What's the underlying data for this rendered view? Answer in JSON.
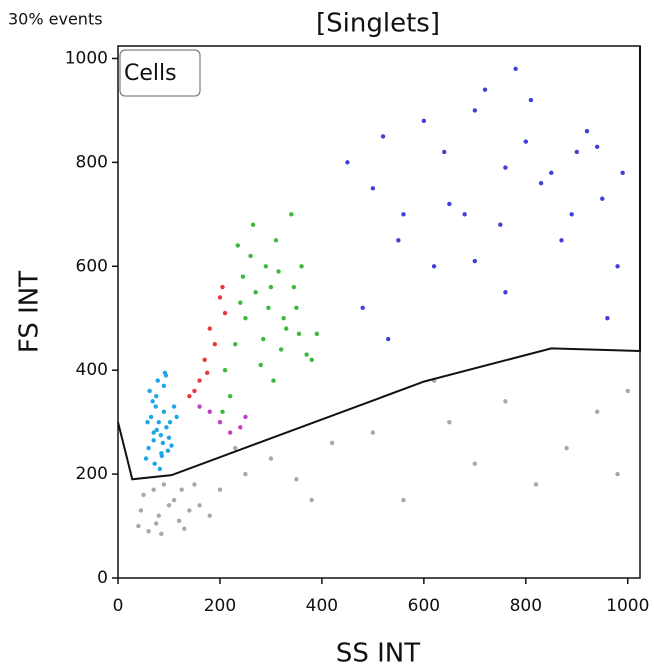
{
  "chart_data": {
    "type": "scatter",
    "title": "[Singlets]",
    "subtitle": "30% events",
    "x_label": "SS INT",
    "y_label": "FS INT",
    "xlim": [
      0,
      1024
    ],
    "ylim": [
      0,
      1024
    ],
    "xticks": [
      0,
      200,
      400,
      600,
      800,
      1000
    ],
    "yticks": [
      0,
      200,
      400,
      600,
      800,
      1000
    ],
    "series": [
      {
        "color": "#a8a8a8",
        "x": [
          40,
          60,
          80,
          100,
          120,
          140,
          50,
          70,
          90,
          110,
          130,
          160,
          180,
          200,
          250,
          300,
          350,
          420,
          500,
          560,
          650,
          700,
          760,
          820,
          880,
          940,
          980,
          1000,
          45,
          85,
          125,
          75,
          150,
          230,
          380,
          620
        ],
        "y": [
          100,
          90,
          120,
          140,
          110,
          130,
          160,
          170,
          180,
          150,
          95,
          140,
          120,
          170,
          200,
          230,
          190,
          260,
          280,
          150,
          300,
          220,
          340,
          180,
          250,
          320,
          200,
          360,
          130,
          85,
          170,
          105,
          180,
          250,
          150,
          380
        ]
      },
      {
        "color": "#1ea7e8",
        "x": [
          60,
          70,
          80,
          90,
          100,
          75,
          85,
          65,
          95,
          110,
          55,
          78,
          88,
          72,
          102,
          68,
          92,
          84,
          76,
          98,
          62,
          115,
          82,
          70,
          90,
          58,
          105,
          74,
          86,
          94
        ],
        "y": [
          250,
          280,
          300,
          320,
          270,
          350,
          240,
          310,
          290,
          330,
          230,
          380,
          260,
          220,
          300,
          340,
          395,
          275,
          285,
          245,
          360,
          310,
          210,
          265,
          370,
          300,
          255,
          330,
          235,
          390
        ]
      },
      {
        "color": "#e83a3a",
        "x": [
          150,
          170,
          180,
          200,
          160,
          190,
          210,
          175,
          140,
          205
        ],
        "y": [
          360,
          420,
          480,
          540,
          380,
          450,
          510,
          395,
          350,
          560
        ]
      },
      {
        "color": "#c040c0",
        "x": [
          180,
          200,
          220,
          240,
          160,
          250
        ],
        "y": [
          320,
          300,
          280,
          290,
          330,
          310
        ]
      },
      {
        "color": "#3cb83c",
        "x": [
          210,
          230,
          250,
          270,
          290,
          310,
          330,
          350,
          370,
          390,
          220,
          260,
          300,
          340,
          240,
          280,
          320,
          360,
          205,
          245,
          285,
          325,
          265,
          305,
          345,
          380,
          235,
          295,
          315,
          355
        ],
        "y": [
          400,
          450,
          500,
          550,
          600,
          650,
          480,
          520,
          430,
          470,
          350,
          620,
          560,
          700,
          530,
          410,
          440,
          600,
          320,
          580,
          460,
          500,
          680,
          380,
          560,
          420,
          640,
          520,
          590,
          470
        ]
      },
      {
        "color": "#4040d8",
        "x": [
          450,
          500,
          550,
          600,
          650,
          700,
          750,
          800,
          850,
          900,
          950,
          980,
          480,
          530,
          620,
          680,
          720,
          780,
          830,
          870,
          920,
          960,
          560,
          640,
          760,
          810,
          890,
          940,
          520,
          700,
          760,
          990
        ],
        "y": [
          800,
          750,
          650,
          880,
          720,
          900,
          680,
          840,
          780,
          820,
          730,
          600,
          520,
          460,
          600,
          700,
          940,
          980,
          760,
          650,
          860,
          500,
          700,
          820,
          790,
          920,
          700,
          830,
          850,
          610,
          550,
          780
        ]
      }
    ],
    "gate": {
      "label": "Cells",
      "x": [
        0,
        28,
        105,
        600,
        850,
        1024,
        1024
      ],
      "y": [
        300,
        190,
        198,
        378,
        442,
        437,
        1024
      ]
    }
  }
}
